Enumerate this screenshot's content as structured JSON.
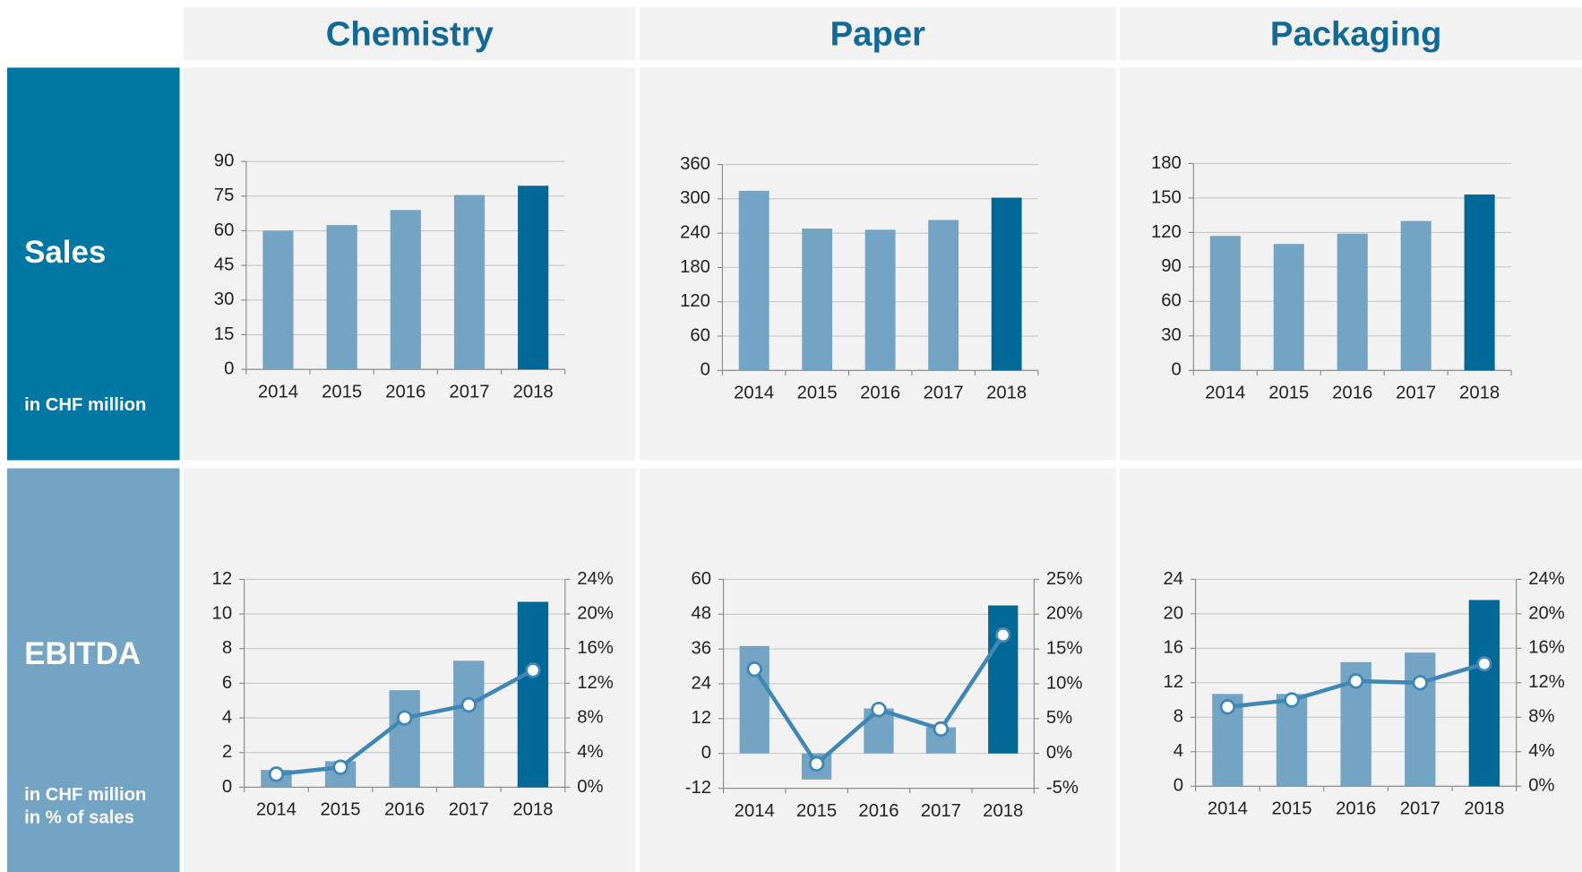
{
  "header": {
    "columns": [
      "Chemistry",
      "Paper",
      "Packaging"
    ]
  },
  "rows": [
    {
      "title": "Sales",
      "notes": [
        "in CHF million"
      ]
    },
    {
      "title": "EBITDA",
      "notes": [
        "in CHF million",
        "in % of sales"
      ]
    }
  ],
  "chart_data": [
    {
      "type": "bar",
      "categories": [
        "2014",
        "2015",
        "2016",
        "2017",
        "2018"
      ],
      "values": [
        60,
        62.5,
        69,
        75.5,
        79.5
      ],
      "colors": [
        "#74a4c4",
        "#74a4c4",
        "#74a4c4",
        "#74a4c4",
        "#006896"
      ],
      "ylim": [
        0,
        90
      ],
      "yticks": [
        0,
        15,
        30,
        45,
        60,
        75,
        90
      ],
      "grid": true
    },
    {
      "type": "bar",
      "categories": [
        "2014",
        "2015",
        "2016",
        "2017",
        "2018"
      ],
      "values": [
        314,
        248,
        246,
        263,
        302
      ],
      "colors": [
        "#74a4c4",
        "#74a4c4",
        "#74a4c4",
        "#74a4c4",
        "#006896"
      ],
      "ylim": [
        0,
        360
      ],
      "yticks": [
        0,
        60,
        120,
        180,
        240,
        300,
        360
      ],
      "grid": true
    },
    {
      "type": "bar",
      "categories": [
        "2014",
        "2015",
        "2016",
        "2017",
        "2018"
      ],
      "values": [
        117,
        110,
        119,
        130,
        153
      ],
      "colors": [
        "#74a4c4",
        "#74a4c4",
        "#74a4c4",
        "#74a4c4",
        "#006896"
      ],
      "ylim": [
        0,
        180
      ],
      "yticks": [
        0,
        30,
        60,
        90,
        120,
        150,
        180
      ],
      "grid": true
    },
    {
      "type": "combo",
      "categories": [
        "2014",
        "2015",
        "2016",
        "2017",
        "2018"
      ],
      "values": [
        1.0,
        1.5,
        5.6,
        7.3,
        10.7
      ],
      "colors": [
        "#74a4c4",
        "#74a4c4",
        "#74a4c4",
        "#74a4c4",
        "#006896"
      ],
      "ylim": [
        0,
        12
      ],
      "yticks": [
        0,
        2,
        4,
        6,
        8,
        10,
        12
      ],
      "y2_values": [
        1.5,
        2.3,
        8.0,
        9.5,
        13.5
      ],
      "line_color": "#3f87b5",
      "y2lim": [
        0,
        24
      ],
      "y2ticks": [
        {
          "value": 0,
          "label": "0%"
        },
        {
          "value": 4,
          "label": "4%"
        },
        {
          "value": 8,
          "label": "8%"
        },
        {
          "value": 12,
          "label": "12%"
        },
        {
          "value": 16,
          "label": "16%"
        },
        {
          "value": 20,
          "label": "20%"
        },
        {
          "value": 24,
          "label": "24%"
        }
      ],
      "grid": true
    },
    {
      "type": "combo",
      "categories": [
        "2014",
        "2015",
        "2016",
        "2017",
        "2018"
      ],
      "values": [
        37,
        -9,
        15.5,
        9,
        51
      ],
      "colors": [
        "#74a4c4",
        "#74a4c4",
        "#74a4c4",
        "#74a4c4",
        "#006896"
      ],
      "ylim": [
        -12,
        60
      ],
      "yticks": [
        -12,
        0,
        12,
        24,
        36,
        48,
        60
      ],
      "y2_values": [
        12.1,
        -1.5,
        6.3,
        3.5,
        17.0
      ],
      "line_color": "#3f87b5",
      "y2lim": [
        -5,
        25
      ],
      "y2ticks": [
        {
          "value": -5,
          "label": "-5%"
        },
        {
          "value": 0,
          "label": "0%"
        },
        {
          "value": 5,
          "label": "5%"
        },
        {
          "value": 10,
          "label": "10%"
        },
        {
          "value": 15,
          "label": "15%"
        },
        {
          "value": 20,
          "label": "20%"
        },
        {
          "value": 25,
          "label": "25%"
        }
      ],
      "grid": true
    },
    {
      "type": "combo",
      "categories": [
        "2014",
        "2015",
        "2016",
        "2017",
        "2018"
      ],
      "values": [
        10.7,
        10.7,
        14.4,
        15.5,
        21.6
      ],
      "colors": [
        "#74a4c4",
        "#74a4c4",
        "#74a4c4",
        "#74a4c4",
        "#006896"
      ],
      "ylim": [
        0,
        24
      ],
      "yticks": [
        0,
        4,
        8,
        12,
        16,
        20,
        24
      ],
      "y2_values": [
        9.2,
        10.0,
        12.2,
        12.0,
        14.2
      ],
      "line_color": "#3f87b5",
      "y2lim": [
        0,
        24
      ],
      "y2ticks": [
        {
          "value": 0,
          "label": "0%"
        },
        {
          "value": 4,
          "label": "4%"
        },
        {
          "value": 8,
          "label": "8%"
        },
        {
          "value": 12,
          "label": "12%"
        },
        {
          "value": 16,
          "label": "16%"
        },
        {
          "value": 20,
          "label": "20%"
        },
        {
          "value": 24,
          "label": "24%"
        }
      ],
      "grid": true
    }
  ]
}
